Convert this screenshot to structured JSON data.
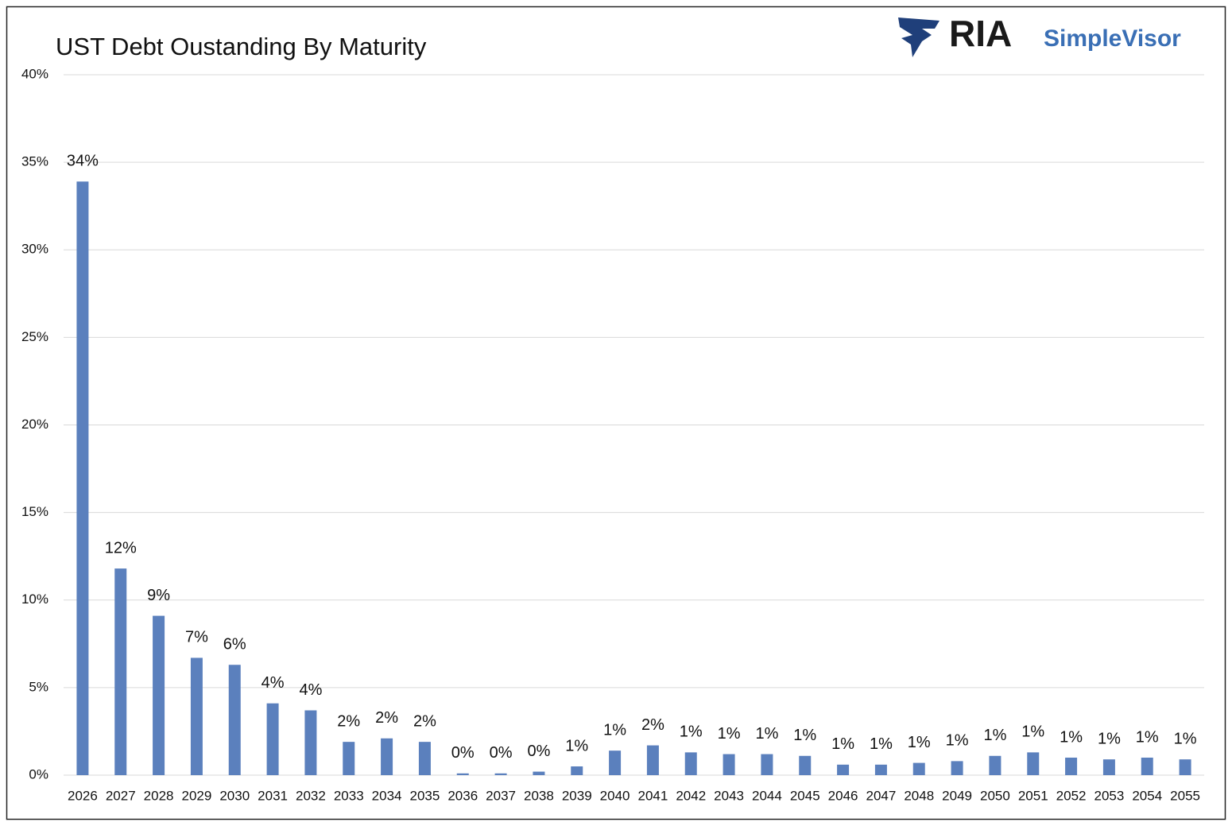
{
  "chart_data": {
    "type": "bar",
    "title": "UST Debt Oustanding By Maturity",
    "logo": {
      "brand": "RIA",
      "product": "SimpleVisor"
    },
    "categories": [
      "2026",
      "2027",
      "2028",
      "2029",
      "2030",
      "2031",
      "2032",
      "2033",
      "2034",
      "2035",
      "2036",
      "2037",
      "2038",
      "2039",
      "2040",
      "2041",
      "2042",
      "2043",
      "2044",
      "2045",
      "2046",
      "2047",
      "2048",
      "2049",
      "2050",
      "2051",
      "2052",
      "2053",
      "2054",
      "2055"
    ],
    "values": [
      33.9,
      11.8,
      9.1,
      6.7,
      6.3,
      4.1,
      3.7,
      1.9,
      2.1,
      1.9,
      0.1,
      0.1,
      0.2,
      0.5,
      1.4,
      1.7,
      1.3,
      1.2,
      1.2,
      1.1,
      0.6,
      0.6,
      0.7,
      0.8,
      1.1,
      1.3,
      1.0,
      0.9,
      1.0,
      0.9
    ],
    "value_labels": [
      "34%",
      "12%",
      "9%",
      "7%",
      "6%",
      "4%",
      "4%",
      "2%",
      "2%",
      "2%",
      "0%",
      "0%",
      "0%",
      "1%",
      "1%",
      "2%",
      "1%",
      "1%",
      "1%",
      "1%",
      "1%",
      "1%",
      "1%",
      "1%",
      "1%",
      "1%",
      "1%",
      "1%",
      "1%",
      "1%"
    ],
    "color": "#5b80bd",
    "ylim": [
      0,
      40
    ],
    "yticks": [
      {
        "value": 0,
        "label": "0%"
      },
      {
        "value": 5,
        "label": "5%"
      },
      {
        "value": 10,
        "label": "10%"
      },
      {
        "value": 15,
        "label": "15%"
      },
      {
        "value": 20,
        "label": "20%"
      },
      {
        "value": 25,
        "label": "25%"
      },
      {
        "value": 30,
        "label": "30%"
      },
      {
        "value": 35,
        "label": "35%"
      },
      {
        "value": 40,
        "label": "40%"
      }
    ],
    "grid": true
  }
}
